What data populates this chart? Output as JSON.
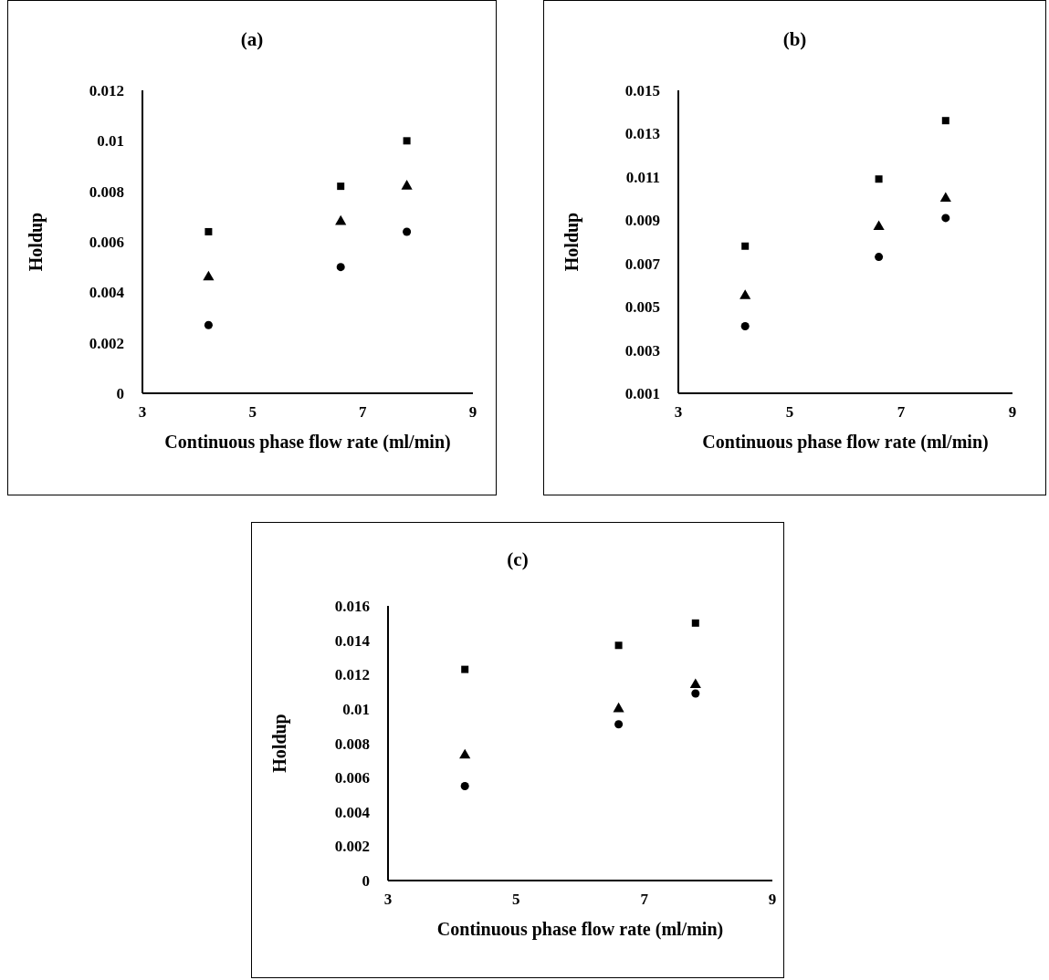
{
  "chart_data": [
    {
      "type": "scatter",
      "title": "(a)",
      "xlabel": "Continuous phase flow rate (ml/min)",
      "ylabel": "Holdup",
      "x": [
        4.2,
        6.6,
        7.8
      ],
      "xlim": [
        3,
        9
      ],
      "xticks": [
        3,
        5,
        7,
        9
      ],
      "ylim": [
        0,
        0.012
      ],
      "yticks": [
        0,
        0.002,
        0.004,
        0.006,
        0.008,
        0.01,
        0.012
      ],
      "series": [
        {
          "color": "#000000",
          "marker": "square",
          "values": [
            0.0064,
            0.0082,
            0.01
          ]
        },
        {
          "color": "#000000",
          "marker": "triangle",
          "values": [
            0.0046,
            0.0068,
            0.0082
          ]
        },
        {
          "color": "#000000",
          "marker": "circle",
          "values": [
            0.0027,
            0.005,
            0.0064
          ]
        }
      ]
    },
    {
      "type": "scatter",
      "title": "(b)",
      "xlabel": "Continuous phase flow rate (ml/min)",
      "ylabel": "Holdup",
      "x": [
        4.2,
        6.6,
        7.8
      ],
      "xlim": [
        3,
        9
      ],
      "xticks": [
        3,
        5,
        7,
        9
      ],
      "ylim": [
        0.001,
        0.015
      ],
      "yticks": [
        0.001,
        0.003,
        0.005,
        0.007,
        0.009,
        0.011,
        0.013,
        0.015
      ],
      "series": [
        {
          "color": "#000000",
          "marker": "square",
          "values": [
            0.0078,
            0.0109,
            0.0136
          ]
        },
        {
          "color": "#000000",
          "marker": "triangle",
          "values": [
            0.0055,
            0.0087,
            0.01
          ]
        },
        {
          "color": "#000000",
          "marker": "circle",
          "values": [
            0.0041,
            0.0073,
            0.0091
          ]
        }
      ]
    },
    {
      "type": "scatter",
      "title": "(c)",
      "xlabel": "Continuous phase flow rate (ml/min)",
      "ylabel": "Holdup",
      "x": [
        4.2,
        6.6,
        7.8
      ],
      "xlim": [
        3,
        9
      ],
      "xticks": [
        3,
        5,
        7,
        9
      ],
      "ylim": [
        0,
        0.016
      ],
      "yticks": [
        0,
        0.002,
        0.004,
        0.006,
        0.008,
        0.01,
        0.012,
        0.014,
        0.016
      ],
      "series": [
        {
          "color": "#000000",
          "marker": "square",
          "values": [
            0.0123,
            0.0137,
            0.015
          ]
        },
        {
          "color": "#000000",
          "marker": "triangle",
          "values": [
            0.0073,
            0.01,
            0.0114
          ]
        },
        {
          "color": "#000000",
          "marker": "circle",
          "values": [
            0.0055,
            0.0091,
            0.0109
          ]
        }
      ]
    }
  ]
}
